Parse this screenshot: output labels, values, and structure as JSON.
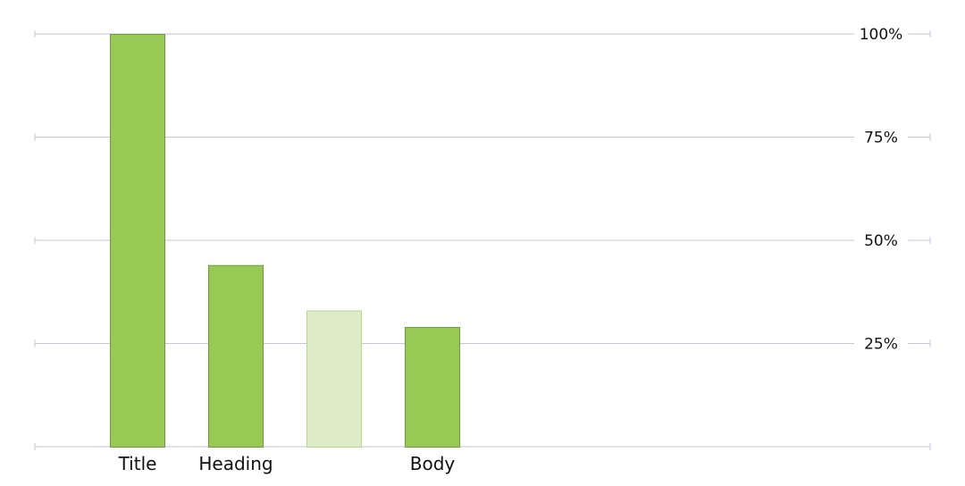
{
  "chart_data": {
    "type": "bar",
    "categories": [
      "Title",
      "Heading",
      "",
      "Body"
    ],
    "values": [
      100,
      44,
      33,
      29
    ],
    "highlight": [
      false,
      false,
      true,
      false
    ],
    "ylim": [
      0,
      100
    ],
    "yticks": [
      25,
      50,
      75,
      100
    ],
    "ytick_labels": [
      "25%",
      "50%",
      "75%",
      "100%"
    ],
    "y_axis_side": "right",
    "grid": true,
    "title": "",
    "xlabel": "",
    "ylabel": "",
    "colors": {
      "bar": "#99c955",
      "bar_border": "#6f9a3a",
      "bar_muted": "#ddebc6",
      "bar_muted_border": "#b7d98c",
      "grid": "#c4c6dd"
    }
  }
}
